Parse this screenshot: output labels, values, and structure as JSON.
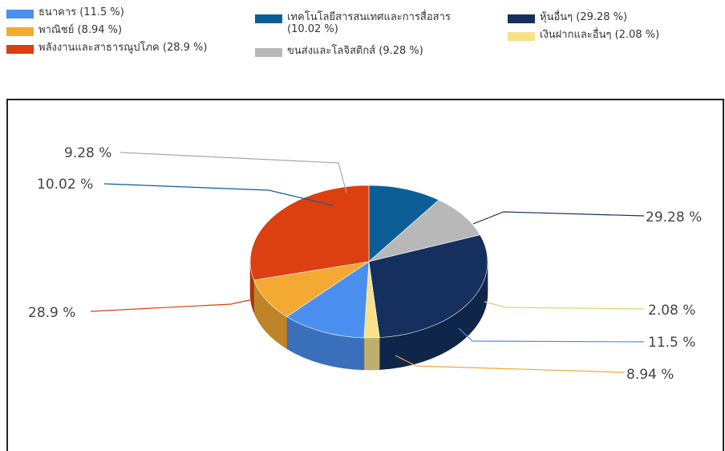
{
  "chart_data": {
    "type": "pie",
    "title": "",
    "legend_position": "top",
    "slices": [
      {
        "legend": "ธนาคาร (11.5 %)",
        "label": "11.5 %",
        "value": 11.5,
        "color": "#4a8ff0"
      },
      {
        "legend": "พาณิชย์ (8.94 %)",
        "label": "8.94 %",
        "value": 8.94,
        "color": "#f3a932"
      },
      {
        "legend": "พลังงานและสาธารณูปโภค (28.9 %)",
        "label": "28.9 %",
        "value": 28.9,
        "color": "#dc3f10"
      },
      {
        "legend": "เทคโนโลยีสารสนเทศและการสื่อสาร (10.02 %)",
        "label": "10.02 %",
        "value": 10.02,
        "color": "#0c5f96"
      },
      {
        "legend": "ขนส่งและโลจิสติกส์ (9.28 %)",
        "label": "9.28 %",
        "value": 9.28,
        "color": "#b8b8b8"
      },
      {
        "legend": "หุ้นอื่นๆ (29.28 %)",
        "label": "29.28 %",
        "value": 29.28,
        "color": "#15305f"
      },
      {
        "legend": "เงินฝากและอื่นๆ (2.08 %)",
        "label": "2.08 %",
        "value": 2.08,
        "color": "#f6e08a"
      }
    ]
  }
}
